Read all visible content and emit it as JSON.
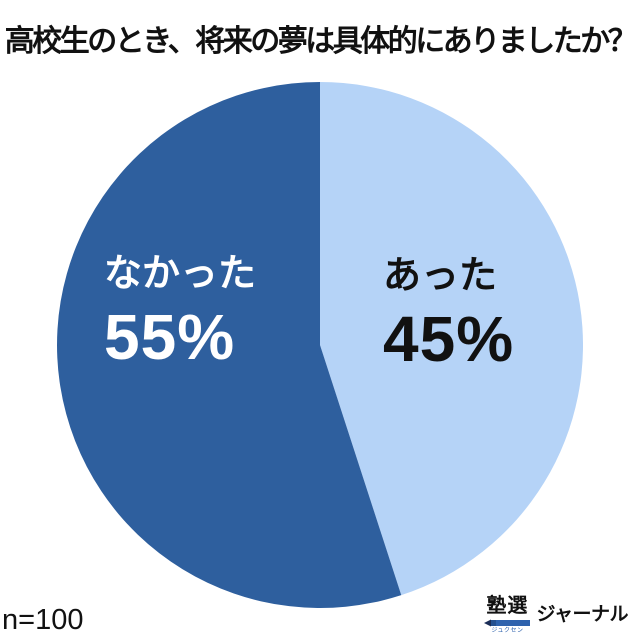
{
  "chart_data": {
    "type": "pie",
    "title": "高校生のとき、将来の夢は具体的にありましたか？",
    "categories": [
      "あった",
      "なかった"
    ],
    "values": [
      45,
      55
    ],
    "value_labels": [
      "45%",
      "55%"
    ],
    "unit": "%",
    "colors": [
      "#b5d3f7",
      "#2e5f9e"
    ],
    "text_colors": [
      "#111111",
      "#ffffff"
    ],
    "start_angle": "top",
    "direction": "clockwise",
    "legend": "none",
    "sample_note": "n=100"
  },
  "logo": {
    "brand": "塾選",
    "furigana": "ジュクセン",
    "journal": "ジャーナル",
    "pencil_body_color": "#2e62ad",
    "pencil_tip_color": "#1b2e57",
    "pencil_band_color": "#24508f"
  }
}
